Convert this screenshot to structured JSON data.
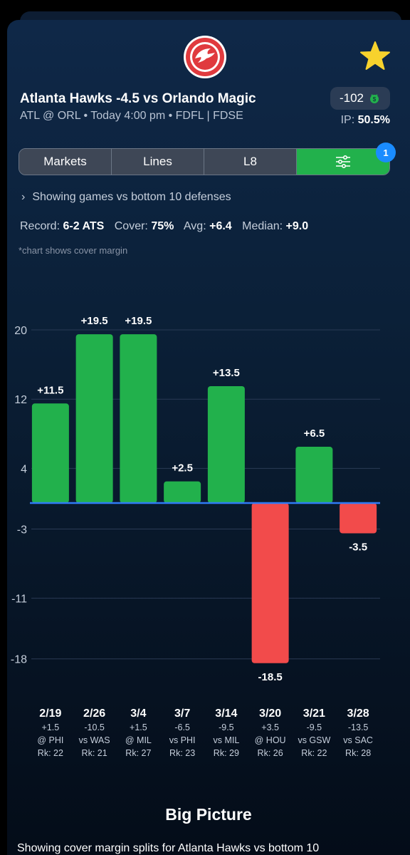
{
  "header": {
    "logo": "atlanta-hawks-logo",
    "favorite_icon": "star-icon",
    "game_title": "Atlanta Hawks -4.5 vs Orlando Magic",
    "game_subtitle": "ATL @ ORL • Today 4:00 pm • FDFL | FDSE",
    "odds": "-102",
    "book_icon": "sportsbook-icon",
    "ip_label": "IP:",
    "ip_value": "50.5%"
  },
  "tabs": {
    "markets": "Markets",
    "lines": "Lines",
    "l8": "L8",
    "filter_icon": "sliders-icon",
    "filter_badge": "1"
  },
  "filter_summary": "Showing games vs bottom 10 defenses",
  "stats": {
    "record_label": "Record:",
    "record_value": "6-2 ATS",
    "cover_label": "Cover:",
    "cover_value": "75%",
    "avg_label": "Avg:",
    "avg_value": "+6.4",
    "median_label": "Median:",
    "median_value": "+9.0"
  },
  "chart_note": "*chart shows cover margin",
  "chart_data": {
    "type": "bar",
    "yticks": [
      "20",
      "12",
      "4",
      "-3",
      "-11",
      "-18"
    ],
    "ytick_values": [
      20,
      12,
      4,
      -3,
      -11,
      -18
    ],
    "categories": [
      "2/19",
      "2/26",
      "3/4",
      "3/7",
      "3/14",
      "3/20",
      "3/21",
      "3/28"
    ],
    "values": [
      11.5,
      19.5,
      19.5,
      2.5,
      13.5,
      -18.5,
      6.5,
      -3.5
    ],
    "value_labels": [
      "+11.5",
      "+19.5",
      "+19.5",
      "+2.5",
      "+13.5",
      "-18.5",
      "+6.5",
      "-3.5"
    ],
    "spreads": [
      "+1.5",
      "-10.5",
      "+1.5",
      "-6.5",
      "-9.5",
      "+3.5",
      "-9.5",
      "-13.5"
    ],
    "opponents": [
      "@ PHI",
      "vs WAS",
      "@ MIL",
      "vs PHI",
      "vs MIL",
      "@ HOU",
      "vs GSW",
      "vs SAC"
    ],
    "ranks": [
      "Rk: 22",
      "Rk: 21",
      "Rk: 27",
      "Rk: 23",
      "Rk: 29",
      "Rk: 26",
      "Rk: 22",
      "Rk: 28"
    ],
    "colors": {
      "positive": "#22b14c",
      "negative": "#f24b4b",
      "zero_line": "#2f7bf5",
      "grid": "#2a3a55"
    }
  },
  "big_picture": {
    "title": "Big Picture",
    "text": "Showing cover margin splits for Atlanta Hawks vs bottom 10"
  }
}
